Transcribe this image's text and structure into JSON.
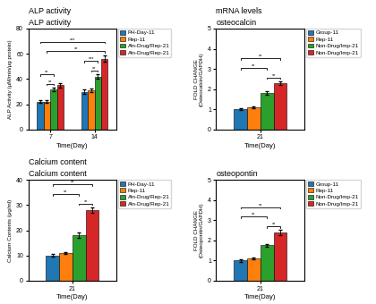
{
  "chart_data": [
    {
      "type": "bar",
      "title": "ALP activity",
      "x_label": "Time(Day)",
      "y_label": "ALP Activity (μM/min/μg protein)",
      "categories": [
        "7",
        "14"
      ],
      "series": [
        {
          "name": "PH-Day-11",
          "values": [
            22,
            30
          ],
          "errors": [
            1.0,
            1.5
          ]
        },
        {
          "name": "Rep-11",
          "values": [
            22,
            31
          ],
          "errors": [
            1.0,
            1.5
          ]
        },
        {
          "name": "Aln-Drug/Rep-21",
          "values": [
            32,
            42
          ],
          "errors": [
            1.5,
            2.0
          ]
        },
        {
          "name": "Aln-Drug/Rep-21",
          "values": [
            35,
            56
          ],
          "errors": [
            1.5,
            2.5
          ]
        }
      ],
      "ylim": [
        0,
        80
      ],
      "yticks": [
        0,
        20,
        40,
        60,
        80
      ],
      "annotations": [
        {
          "text": "ALP activity"
        },
        {
          "text": "***",
          "start": {
            "category": "7",
            "series": 0
          },
          "end": {
            "category": "14",
            "series": 3
          }
        },
        {
          "text": "**",
          "start": {
            "category": "7",
            "series": 1
          },
          "end": {
            "category": "14",
            "series": 3
          }
        },
        {
          "text": "**",
          "start": {
            "category": "7",
            "series": 0
          },
          "end": {
            "category": "7",
            "series": 2
          }
        },
        {
          "text": "**",
          "start": {
            "category": "7",
            "series": 1
          },
          "end": {
            "category": "7",
            "series": 2
          }
        },
        {
          "text": "***",
          "start": {
            "category": "14",
            "series": 0
          },
          "end": {
            "category": "14",
            "series": 2
          }
        },
        {
          "text": "**",
          "start": {
            "category": "14",
            "series": 1
          },
          "end": {
            "category": "14",
            "series": 2
          }
        }
      ]
    },
    {
      "type": "bar",
      "title": "osteocalcin",
      "x_label": "Time(Day)",
      "y_label": "FOLD CHANGE\n(Osteocalcin/GAPDH)",
      "categories": [
        "21"
      ],
      "series": [
        {
          "name": "Group-11",
          "values": [
            1.0
          ],
          "errors": [
            0.05
          ]
        },
        {
          "name": "Rep-11",
          "values": [
            1.1
          ],
          "errors": [
            0.05
          ]
        },
        {
          "name": "Non-Drug/Imp-21",
          "values": [
            1.8
          ],
          "errors": [
            0.08
          ]
        },
        {
          "name": "Non-Drug/Imp-21",
          "values": [
            2.3
          ],
          "errors": [
            0.1
          ]
        }
      ],
      "ylim": [
        0,
        5
      ],
      "yticks": [
        0,
        1,
        2,
        3,
        4,
        5
      ],
      "annotations": [
        {
          "text": "mRNA levels"
        },
        {
          "text": "**",
          "start": {
            "category": "21",
            "series": 0
          },
          "end": {
            "category": "21",
            "series": 2
          }
        },
        {
          "text": "**",
          "start": {
            "category": "21",
            "series": 0
          },
          "end": {
            "category": "21",
            "series": 3
          }
        },
        {
          "text": "**",
          "start": {
            "category": "21",
            "series": 2
          },
          "end": {
            "category": "21",
            "series": 3
          }
        }
      ]
    },
    {
      "type": "bar",
      "title": "Calcium content",
      "x_label": "Time(Day)",
      "y_label": "Calcium Contents (μg/ml)",
      "categories": [
        "21"
      ],
      "series": [
        {
          "name": "PH-Day-11",
          "values": [
            10
          ],
          "errors": [
            0.5
          ]
        },
        {
          "name": "Rep-11",
          "values": [
            11
          ],
          "errors": [
            0.5
          ]
        },
        {
          "name": "Aln-Drug/Rep-21",
          "values": [
            18
          ],
          "errors": [
            1.0
          ]
        },
        {
          "name": "Aln-Drug/Rep-21",
          "values": [
            28
          ],
          "errors": [
            1.2
          ]
        }
      ],
      "ylim": [
        0,
        40
      ],
      "yticks": [
        0,
        10,
        20,
        30,
        40
      ],
      "annotations": [
        {
          "text": "Calcium content"
        },
        {
          "text": "**",
          "start": {
            "category": "21",
            "series": 0
          },
          "end": {
            "category": "21",
            "series": 2
          }
        },
        {
          "text": "**",
          "start": {
            "category": "21",
            "series": 0
          },
          "end": {
            "category": "21",
            "series": 3
          }
        },
        {
          "text": "**",
          "start": {
            "category": "21",
            "series": 2
          },
          "end": {
            "category": "21",
            "series": 3
          }
        }
      ]
    },
    {
      "type": "bar",
      "title": "osteopontin",
      "x_label": "Time(Day)",
      "y_label": "FOLD CHANGE\n(Osteopontin/GAPDH)",
      "categories": [
        "21"
      ],
      "series": [
        {
          "name": "Group-11",
          "values": [
            1.0
          ],
          "errors": [
            0.05
          ]
        },
        {
          "name": "Rep-11",
          "values": [
            1.1
          ],
          "errors": [
            0.05
          ]
        },
        {
          "name": "Non-Drug/Imp-21",
          "values": [
            1.75
          ],
          "errors": [
            0.08
          ]
        },
        {
          "name": "Non-Drug/Imp-21",
          "values": [
            2.4
          ],
          "errors": [
            0.12
          ]
        }
      ],
      "ylim": [
        0,
        5
      ],
      "yticks": [
        0,
        1,
        2,
        3,
        4,
        5
      ],
      "annotations": [
        {
          "text": "**",
          "start": {
            "category": "21",
            "series": 0
          },
          "end": {
            "category": "21",
            "series": 2
          }
        },
        {
          "text": "**",
          "start": {
            "category": "21",
            "series": 0
          },
          "end": {
            "category": "21",
            "series": 3
          }
        },
        {
          "text": "**",
          "start": {
            "category": "21",
            "series": 2
          },
          "end": {
            "category": "21",
            "series": 3
          }
        }
      ]
    }
  ]
}
